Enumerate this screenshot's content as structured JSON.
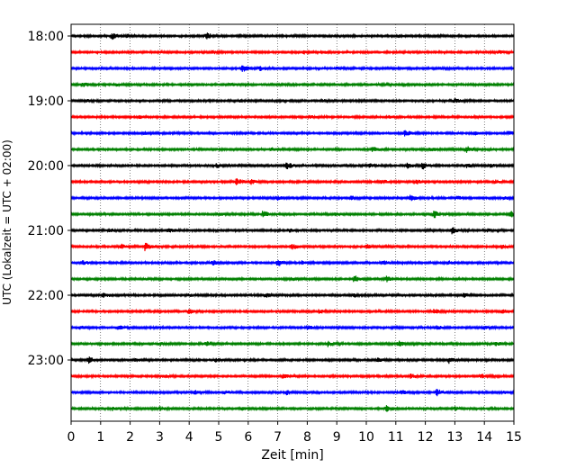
{
  "chart_data": {
    "type": "line",
    "title": "",
    "xlabel": "Zeit  [min]",
    "ylabel": "UTC (Lokalzeit = UTC + 02:00)",
    "xlim": [
      0,
      15
    ],
    "x_ticks": [
      "0",
      "1",
      "2",
      "3",
      "4",
      "5",
      "6",
      "7",
      "8",
      "9",
      "10",
      "11",
      "12",
      "13",
      "14",
      "15"
    ],
    "y_ticks": [
      "18:00",
      "19:00",
      "20:00",
      "21:00",
      "22:00",
      "23:00"
    ],
    "grid": "vertical-dotted",
    "trace_interval_min": 15,
    "color_cycle": [
      "#000000",
      "#ff0000",
      "#0000ff",
      "#008000"
    ],
    "series": [
      {
        "start": "18:00",
        "color": "#000000",
        "events": [
          [
            1.4,
            0.7
          ],
          [
            4.6,
            0.75
          ],
          [
            1.9,
            0.25
          ],
          [
            11.1,
            0.2
          ]
        ]
      },
      {
        "start": "18:15",
        "color": "#ff0000",
        "events": [
          [
            4.8,
            0.4
          ],
          [
            7.9,
            0.35
          ],
          [
            8.5,
            0.3
          ],
          [
            14.5,
            0.3
          ]
        ]
      },
      {
        "start": "18:30",
        "color": "#0000ff",
        "events": [
          [
            5.8,
            0.8
          ],
          [
            6.4,
            0.5
          ],
          [
            9.0,
            0.3
          ],
          [
            12.5,
            0.3
          ]
        ]
      },
      {
        "start": "18:45",
        "color": "#008000",
        "events": [
          [
            0.4,
            0.45
          ],
          [
            1.5,
            0.35
          ],
          [
            5.4,
            0.35
          ],
          [
            10.2,
            0.3
          ]
        ]
      },
      {
        "start": "19:00",
        "color": "#000000",
        "events": [
          [
            0.5,
            0.3
          ],
          [
            5.7,
            0.3
          ],
          [
            13.0,
            0.55
          ],
          [
            8.5,
            0.25
          ]
        ]
      },
      {
        "start": "19:15",
        "color": "#ff0000",
        "events": [
          [
            2.3,
            0.3
          ],
          [
            8.1,
            0.3
          ],
          [
            10.8,
            0.25
          ],
          [
            13.6,
            0.2
          ]
        ]
      },
      {
        "start": "19:30",
        "color": "#0000ff",
        "events": [
          [
            11.3,
            0.85
          ],
          [
            13.7,
            0.45
          ],
          [
            14.8,
            0.4
          ],
          [
            2.5,
            0.3
          ]
        ]
      },
      {
        "start": "19:45",
        "color": "#008000",
        "events": [
          [
            10.2,
            0.6
          ],
          [
            12.2,
            0.45
          ],
          [
            13.4,
            0.75
          ],
          [
            6.8,
            0.3
          ]
        ]
      },
      {
        "start": "20:00",
        "color": "#000000",
        "events": [
          [
            4.9,
            0.6
          ],
          [
            7.3,
            0.85
          ],
          [
            10.1,
            0.55
          ],
          [
            11.4,
            0.7
          ],
          [
            11.9,
            0.8
          ],
          [
            13.4,
            0.4
          ],
          [
            14.2,
            0.45
          ]
        ]
      },
      {
        "start": "20:15",
        "color": "#ff0000",
        "events": [
          [
            5.6,
            0.8
          ],
          [
            6.1,
            0.5
          ],
          [
            10.5,
            0.5
          ],
          [
            11.7,
            0.45
          ],
          [
            14.4,
            0.4
          ]
        ]
      },
      {
        "start": "20:30",
        "color": "#0000ff",
        "events": [
          [
            7.0,
            0.5
          ],
          [
            9.5,
            0.45
          ],
          [
            11.5,
            0.65
          ],
          [
            13.1,
            0.4
          ],
          [
            14.7,
            0.3
          ]
        ]
      },
      {
        "start": "20:45",
        "color": "#008000",
        "events": [
          [
            6.5,
            0.9
          ],
          [
            12.3,
            0.8
          ],
          [
            14.9,
            0.7
          ],
          [
            5.0,
            0.4
          ],
          [
            9.0,
            0.4
          ]
        ]
      },
      {
        "start": "21:00",
        "color": "#000000",
        "events": [
          [
            1.3,
            0.45
          ],
          [
            3.3,
            0.5
          ],
          [
            7.4,
            0.4
          ],
          [
            12.9,
            0.85
          ],
          [
            14.1,
            0.4
          ]
        ]
      },
      {
        "start": "21:15",
        "color": "#ff0000",
        "events": [
          [
            2.5,
            1.0
          ],
          [
            1.7,
            0.5
          ],
          [
            7.5,
            0.55
          ],
          [
            10.0,
            0.55
          ],
          [
            14.6,
            0.4
          ]
        ]
      },
      {
        "start": "21:30",
        "color": "#0000ff",
        "events": [
          [
            0.4,
            0.5
          ],
          [
            4.8,
            0.6
          ],
          [
            7.0,
            0.9
          ],
          [
            7.8,
            0.5
          ],
          [
            10.6,
            0.5
          ],
          [
            12.8,
            0.4
          ]
        ]
      },
      {
        "start": "21:45",
        "color": "#008000",
        "events": [
          [
            9.6,
            0.8
          ],
          [
            10.7,
            0.7
          ],
          [
            7.5,
            0.3
          ],
          [
            2.5,
            0.3
          ]
        ]
      },
      {
        "start": "22:00",
        "color": "#000000",
        "events": [
          [
            1.1,
            0.5
          ],
          [
            6.6,
            0.45
          ],
          [
            9.6,
            0.45
          ],
          [
            13.3,
            0.45
          ],
          [
            4.0,
            0.3
          ]
        ]
      },
      {
        "start": "22:15",
        "color": "#ff0000",
        "events": [
          [
            4.0,
            0.55
          ],
          [
            8.4,
            0.5
          ],
          [
            12.3,
            0.55
          ],
          [
            14.6,
            0.45
          ],
          [
            2.4,
            0.3
          ]
        ]
      },
      {
        "start": "22:30",
        "color": "#0000ff",
        "events": [
          [
            0.3,
            0.45
          ],
          [
            1.6,
            0.6
          ],
          [
            8.0,
            0.5
          ],
          [
            12.4,
            0.5
          ],
          [
            14.0,
            0.45
          ]
        ]
      },
      {
        "start": "22:45",
        "color": "#008000",
        "events": [
          [
            3.0,
            0.4
          ],
          [
            4.6,
            0.55
          ],
          [
            8.7,
            0.6
          ],
          [
            11.1,
            0.65
          ],
          [
            14.4,
            0.4
          ]
        ]
      },
      {
        "start": "23:00",
        "color": "#000000",
        "events": [
          [
            0.6,
            0.7
          ],
          [
            4.9,
            0.35
          ],
          [
            10.4,
            0.4
          ],
          [
            12.8,
            0.65
          ],
          [
            2.2,
            0.35
          ]
        ]
      },
      {
        "start": "23:15",
        "color": "#ff0000",
        "events": [
          [
            7.2,
            0.5
          ],
          [
            11.5,
            0.5
          ],
          [
            13.9,
            0.4
          ],
          [
            3.1,
            0.35
          ]
        ]
      },
      {
        "start": "23:30",
        "color": "#0000ff",
        "events": [
          [
            4.2,
            0.5
          ],
          [
            5.2,
            0.4
          ],
          [
            7.3,
            0.45
          ],
          [
            11.2,
            0.6
          ],
          [
            12.4,
            0.85
          ],
          [
            14.7,
            0.4
          ]
        ]
      },
      {
        "start": "23:45",
        "color": "#008000",
        "events": [
          [
            1.4,
            0.4
          ],
          [
            3.0,
            0.5
          ],
          [
            5.8,
            0.4
          ],
          [
            10.7,
            0.75
          ],
          [
            13.0,
            0.4
          ]
        ]
      }
    ]
  }
}
